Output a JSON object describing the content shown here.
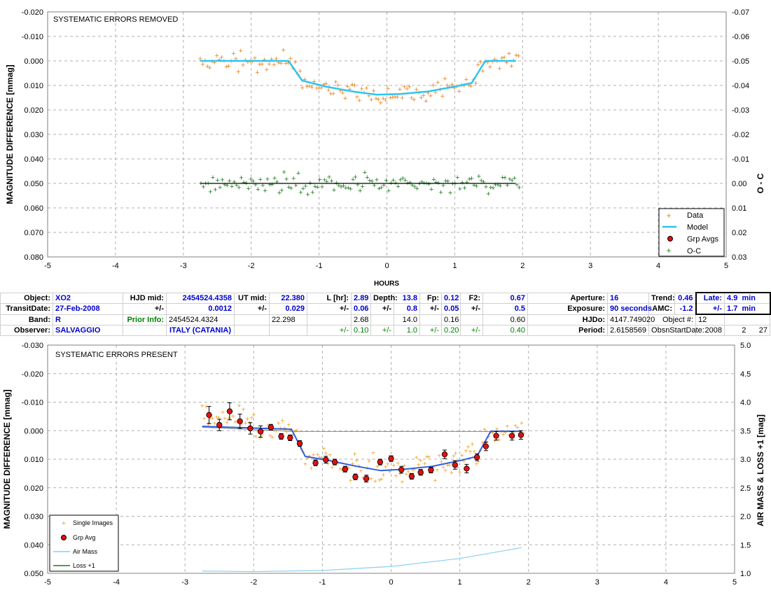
{
  "chart_data": [
    {
      "type": "scatter",
      "title": "SYSTEMATIC ERRORS REMOVED",
      "xlabel": "HOURS",
      "ylabel": "MAGNITUDE DIFFERENCE [mmag]",
      "y2label": "O - C",
      "xlim": [
        -5,
        5
      ],
      "ylim": [
        0.08,
        -0.02
      ],
      "y2lim": [
        0.03,
        -0.07
      ],
      "xticks": [
        "-5",
        "-4",
        "-3",
        "-2",
        "-1",
        "0",
        "1",
        "2",
        "3",
        "4",
        "5"
      ],
      "yticks": [
        "-0.020",
        "-0.010",
        "0.000",
        "0.010",
        "0.020",
        "0.030",
        "0.040",
        "0.050",
        "0.060",
        "0.070",
        "0.080"
      ],
      "y2ticks": [
        "-0.07",
        "-0.06",
        "-0.05",
        "-0.04",
        "-0.03",
        "-0.02",
        "-0.01",
        "0.00",
        "0.01",
        "0.02",
        "0.03"
      ],
      "legend_position": "bottom-right",
      "legend": [
        "Data",
        "Model",
        "Grp Avgs",
        "O-C"
      ],
      "model": {
        "x": [
          -2.75,
          -1.45,
          -1.25,
          -0.9,
          -0.5,
          -0.15,
          0.2,
          0.6,
          1.0,
          1.25,
          1.45,
          1.9
        ],
        "y": [
          0.0,
          0.0,
          0.008,
          0.0105,
          0.0125,
          0.0138,
          0.0135,
          0.0125,
          0.0105,
          0.009,
          0.0,
          0.0
        ]
      },
      "oc_line": {
        "x": [
          -2.75,
          1.9
        ],
        "y": [
          0.05,
          0.05
        ]
      },
      "colors": {
        "data": "#e8821e",
        "model": "#2ec4f0",
        "oc": "#1f7a1f",
        "line": "#000000"
      }
    },
    {
      "type": "scatter",
      "title": "SYSTEMATIC ERRORS PRESENT",
      "ylabel": "MAGNITUDE DIFFERENCE [mmag]",
      "y2label": "AIR MASS & LOSS +1 [mag]",
      "xlim": [
        -5,
        5
      ],
      "ylim": [
        0.05,
        -0.03
      ],
      "y2lim": [
        1.0,
        5.0
      ],
      "xticks": [
        "-5",
        "-4",
        "-3",
        "-2",
        "-1",
        "0",
        "1",
        "2",
        "3",
        "4",
        "5"
      ],
      "yticks": [
        "-0.030",
        "-0.020",
        "-0.010",
        "0.000",
        "0.010",
        "0.020",
        "0.030",
        "0.040",
        "0.050"
      ],
      "y2ticks": [
        "5.0",
        "4.5",
        "4.0",
        "3.5",
        "3.0",
        "2.5",
        "2.0",
        "1.5",
        "1.0"
      ],
      "legend_position": "bottom-left",
      "legend": [
        "Single Images",
        "Grp Avg",
        "Air Mass",
        "Loss +1"
      ],
      "grp_avg": {
        "x": [
          -2.65,
          -2.5,
          -2.35,
          -2.2,
          -2.05,
          -1.9,
          -1.75,
          -1.6,
          -1.47,
          -1.33,
          -1.1,
          -0.95,
          -0.82,
          -0.67,
          -0.52,
          -0.36,
          -0.16,
          0.0,
          0.15,
          0.3,
          0.43,
          0.58,
          0.78,
          0.93,
          1.1,
          1.25,
          1.38,
          1.53,
          1.76,
          1.89
        ],
        "y": [
          -0.0055,
          -0.002,
          -0.0068,
          -0.0033,
          -0.0008,
          0.0003,
          -0.0012,
          0.002,
          0.0025,
          0.0045,
          0.0113,
          0.0102,
          0.011,
          0.0135,
          0.0162,
          0.0168,
          0.011,
          0.0098,
          0.0137,
          0.016,
          0.0146,
          0.0138,
          0.0083,
          0.012,
          0.0133,
          0.0093,
          0.0055,
          0.0018,
          0.0018,
          0.0015
        ],
        "err": [
          0.003,
          0.002,
          0.003,
          0.0025,
          0.002,
          0.002,
          0.001,
          0.001,
          0.001,
          0.001,
          0.001,
          0.0012,
          0.001,
          0.001,
          0.001,
          0.0012,
          0.001,
          0.001,
          0.0012,
          0.001,
          0.001,
          0.001,
          0.0015,
          0.0015,
          0.0015,
          0.0012,
          0.0015,
          0.0015,
          0.0015,
          0.0015
        ]
      },
      "model": {
        "x": [
          -2.75,
          -1.45,
          -1.25,
          -0.9,
          -0.5,
          -0.15,
          0.2,
          0.6,
          1.0,
          1.25,
          1.45,
          1.9
        ],
        "y": [
          -0.0015,
          -0.0005,
          0.009,
          0.0105,
          0.0125,
          0.014,
          0.0135,
          0.0125,
          0.0105,
          0.009,
          0.0002,
          0.0002
        ]
      },
      "loss_line": {
        "x": [
          -2.75,
          -1.4,
          1.9
        ],
        "y": [
          -0.0012,
          0.0003,
          0.0003
        ]
      },
      "airmass": {
        "x": [
          -2.75,
          -2.0,
          -1.0,
          0.0,
          1.0,
          1.9
        ],
        "y2": [
          1.04,
          1.03,
          1.05,
          1.12,
          1.26,
          1.45
        ]
      },
      "colors": {
        "data": "#f0a020",
        "grp": "#e01010",
        "model": "#2f5ee0",
        "airmass": "#8ad0f0",
        "loss": "#909090"
      }
    }
  ],
  "info_table": {
    "row1": {
      "object_label": "Object:",
      "object": "XO2",
      "hjd_label": "HJD mid:",
      "hjd": "2454524.4358",
      "ut_label": "UT mid:",
      "ut": "22.380",
      "l_label": "L [hr]:",
      "l": "2.89",
      "depth_label": "Depth:",
      "depth": "13.8",
      "fp_label": "Fp:",
      "fp": "0.12",
      "f2_label": "F2:",
      "f2": "0.67",
      "aperture_label": "Aperture:",
      "aperture": "16",
      "trend_label": "Trend:",
      "trend": "0.46",
      "late_label": "Late:",
      "late": "4.9",
      "late_unit": "min"
    },
    "row2": {
      "date_label": "TransitDate:",
      "date": "27-Feb-2008",
      "pm": "+/-",
      "hjd_err": "0.0012",
      "ut_err": "0.029",
      "l_err": "0.06",
      "depth_err": "0.8",
      "fp_err": "0.05",
      "f2_err": "0.5",
      "exposure_label": "Exposure:",
      "exposure": "90 seconds",
      "amc_label": "AMC:",
      "amc": "-1.2",
      "late_err": "1.7",
      "late_err_unit": "min"
    },
    "row3": {
      "band_label": "Band:",
      "band": "R",
      "prior_label": "Prior Info:",
      "prior_hjd": "2454524.4324",
      "prior_ut": "22.298",
      "prior_l": "2.68",
      "prior_depth": "14.0",
      "prior_fp": "0.16",
      "prior_f2": "0.60",
      "hjdo_label": "HJDo:",
      "hjdo": "4147.749020",
      "objnum_label": "Object #:",
      "objnum": "12"
    },
    "row4": {
      "observer_label": "Observer:",
      "observer": "SALVAGGIO",
      "location": "ITALY (CATANIA)",
      "l_err": "0.10",
      "depth_err": "1.0",
      "fp_err": "0.20",
      "f2_err": "0.40",
      "period_label": "Period:",
      "period": "2.6158569",
      "obsn_label": "ObsnStartDate:",
      "year": "2008",
      "month": "2",
      "day": "27"
    }
  }
}
